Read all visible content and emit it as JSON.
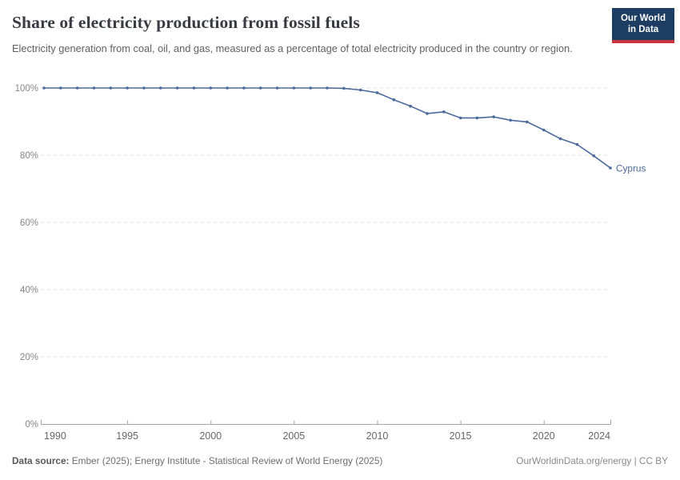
{
  "header": {
    "title": "Share of electricity production from fossil fuels",
    "subtitle": "Electricity generation from coal, oil, and gas, measured as a percentage of total electricity produced in the country or region."
  },
  "logo": {
    "line1": "Our World",
    "line2": "in Data",
    "bg_color": "#1d3d63",
    "accent_color": "#cc3340"
  },
  "chart_data": {
    "type": "line",
    "title": "Share of electricity production from fossil fuels",
    "xlabel": "",
    "ylabel": "",
    "xlim": [
      1990,
      2024
    ],
    "ylim": [
      0,
      100
    ],
    "xticks": [
      1990,
      1995,
      2000,
      2005,
      2010,
      2015,
      2020,
      2024
    ],
    "yticks": [
      0,
      20,
      40,
      60,
      80,
      100
    ],
    "ytick_suffix": "%",
    "grid": "horizontal-dashed",
    "legend_position": "end-of-line-label",
    "x": [
      1990,
      1991,
      1992,
      1993,
      1994,
      1995,
      1996,
      1997,
      1998,
      1999,
      2000,
      2001,
      2002,
      2003,
      2004,
      2005,
      2006,
      2007,
      2008,
      2009,
      2010,
      2011,
      2012,
      2013,
      2014,
      2015,
      2016,
      2017,
      2018,
      2019,
      2020,
      2021,
      2022,
      2023,
      2024
    ],
    "series": [
      {
        "name": "Cyprus",
        "color": "#4c6a9c",
        "values": [
          100,
          100,
          100,
          100,
          100,
          100,
          100,
          100,
          100,
          100,
          100,
          100,
          100,
          100,
          100,
          100,
          100,
          100,
          99.9,
          99.4,
          98.6,
          96.5,
          94.6,
          92.4,
          92.9,
          91.1,
          91.1,
          91.4,
          90.4,
          89.9,
          87.5,
          84.9,
          83.2,
          79.8,
          76.2
        ]
      }
    ]
  },
  "footer": {
    "source_label": "Data source:",
    "source_text": "Ember (2025); Energy Institute - Statistical Review of World Energy (2025)",
    "credit": "OurWorldinData.org/energy | CC BY"
  },
  "colors": {
    "line": "#4c6a9c",
    "grid": "#dcdcdc",
    "axis": "#a5a5a5",
    "title_text": "#383c42",
    "subtitle_text": "#616161"
  }
}
